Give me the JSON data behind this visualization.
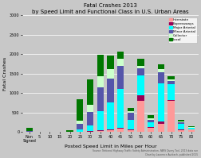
{
  "title": "Fatal Crashes 2013",
  "subtitle": "by Speed Limit and Functional Class in U.S. Urban Areas",
  "xlabel": "Posted Speed Limit in Miles per Hour",
  "ylabel": "Fatal Crashes",
  "source": "Source: National Highway Traffic Safety Administration, FARS Query Tool, 2013 data run\nChart by Laurence Aurbach, published 2015",
  "categories": [
    "Non\nSigned",
    "5",
    "10",
    "15",
    "20",
    "25",
    "30",
    "35",
    "40",
    "45",
    "50",
    "55",
    "60",
    "65",
    "70",
    "75",
    "80"
  ],
  "legend_labels": [
    "Interstate",
    "Expressways",
    "Major Arterial",
    "Minor Arterial",
    "Collector",
    "Local"
  ],
  "colors": [
    "#FF9999",
    "#990055",
    "#00FFFF",
    "#5555AA",
    "#CCFFCC",
    "#007700"
  ],
  "data": {
    "Interstate": [
      0,
      0,
      0,
      0,
      0,
      5,
      10,
      30,
      50,
      80,
      50,
      800,
      100,
      200,
      800,
      50,
      60
    ],
    "Expressways": [
      0,
      0,
      0,
      0,
      0,
      3,
      5,
      15,
      20,
      30,
      20,
      150,
      30,
      60,
      30,
      15,
      10
    ],
    "Major Arterial": [
      10,
      0,
      0,
      0,
      5,
      50,
      150,
      500,
      700,
      1000,
      250,
      500,
      120,
      1000,
      400,
      150,
      30
    ],
    "Minor Arterial": [
      10,
      0,
      0,
      0,
      3,
      150,
      350,
      600,
      600,
      600,
      180,
      180,
      70,
      280,
      80,
      40,
      15
    ],
    "Collector": [
      5,
      0,
      0,
      0,
      3,
      80,
      180,
      300,
      250,
      180,
      40,
      80,
      25,
      70,
      40,
      15,
      8
    ],
    "Local": [
      80,
      3,
      3,
      3,
      40,
      550,
      650,
      550,
      350,
      180,
      70,
      180,
      90,
      130,
      80,
      40,
      15
    ]
  },
  "ylim": [
    0,
    3000
  ],
  "yticks": [
    0,
    500,
    1000,
    1500,
    2000,
    2500,
    3000
  ],
  "bg_color": "#C8C8C8",
  "plot_bg_color": "#C8C8C8",
  "grid_color": "#FFFFFF"
}
